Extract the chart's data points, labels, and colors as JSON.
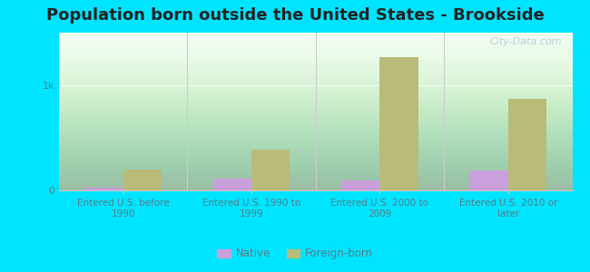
{
  "title": "Population born outside the United States - Brookside",
  "categories": [
    "Entered U.S. before\n1990",
    "Entered U.S. 1990 to\n1999",
    "Entered U.S. 2000 to\n2009",
    "Entered U.S. 2010 or\nlater"
  ],
  "native_values": [
    25,
    110,
    95,
    190
  ],
  "foreign_values": [
    200,
    390,
    1270,
    870
  ],
  "native_color": "#c9a0dc",
  "foreign_color": "#b8bc78",
  "ylim": [
    0,
    1500
  ],
  "ytick_labels": [
    "0",
    "1k"
  ],
  "ytick_values": [
    0,
    1000
  ],
  "bg_color_top": "#f0fff0",
  "bg_color_bottom": "#c8f0c8",
  "outer_bg": "#00e5ff",
  "bar_width": 0.3,
  "legend_native": "Native",
  "legend_foreign": "Foreign-born",
  "title_fontsize": 13,
  "axis_label_color": "#5a7a8a",
  "tick_label_color": "#5a7a8a",
  "watermark": "City-Data.com",
  "separator_color": "#cccccc"
}
